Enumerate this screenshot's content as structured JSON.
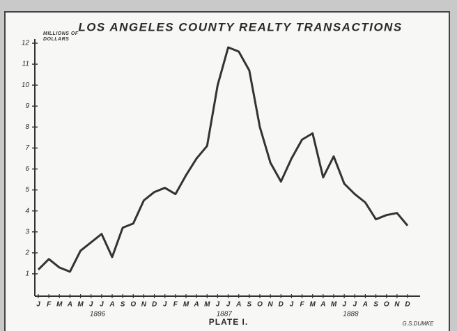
{
  "chart_data": {
    "type": "line",
    "title": "LOS ANGELES COUNTY REALTY TRANSACTIONS",
    "ylabel": "MILLIONS OF DOLLARS",
    "categories": [
      "J",
      "F",
      "M",
      "A",
      "M",
      "J",
      "J",
      "A",
      "S",
      "O",
      "N",
      "D",
      "J",
      "F",
      "M",
      "A",
      "M",
      "J",
      "J",
      "A",
      "S",
      "O",
      "N",
      "D",
      "J",
      "F",
      "M",
      "A",
      "M",
      "J",
      "J",
      "A",
      "S",
      "O",
      "N",
      "D"
    ],
    "year_labels": [
      "1886",
      "1887",
      "1888"
    ],
    "series": [
      {
        "name": "Realty transactions",
        "color": "#333333",
        "values": [
          1.2,
          1.7,
          1.3,
          1.1,
          2.1,
          2.5,
          2.9,
          1.8,
          3.2,
          3.4,
          4.5,
          4.9,
          5.1,
          4.8,
          5.7,
          6.5,
          7.1,
          10.0,
          11.8,
          11.6,
          10.7,
          8.0,
          6.3,
          5.4,
          6.5,
          7.4,
          7.7,
          5.6,
          6.6,
          5.3,
          4.8,
          4.4,
          3.6,
          3.8,
          3.9,
          3.3
        ]
      }
    ],
    "ylim": [
      0,
      12
    ],
    "yticks": [
      1,
      2,
      3,
      4,
      5,
      6,
      7,
      8,
      9,
      10,
      11,
      12
    ],
    "footer": "PLATE I.",
    "signature": "G.S.DUMKE"
  }
}
